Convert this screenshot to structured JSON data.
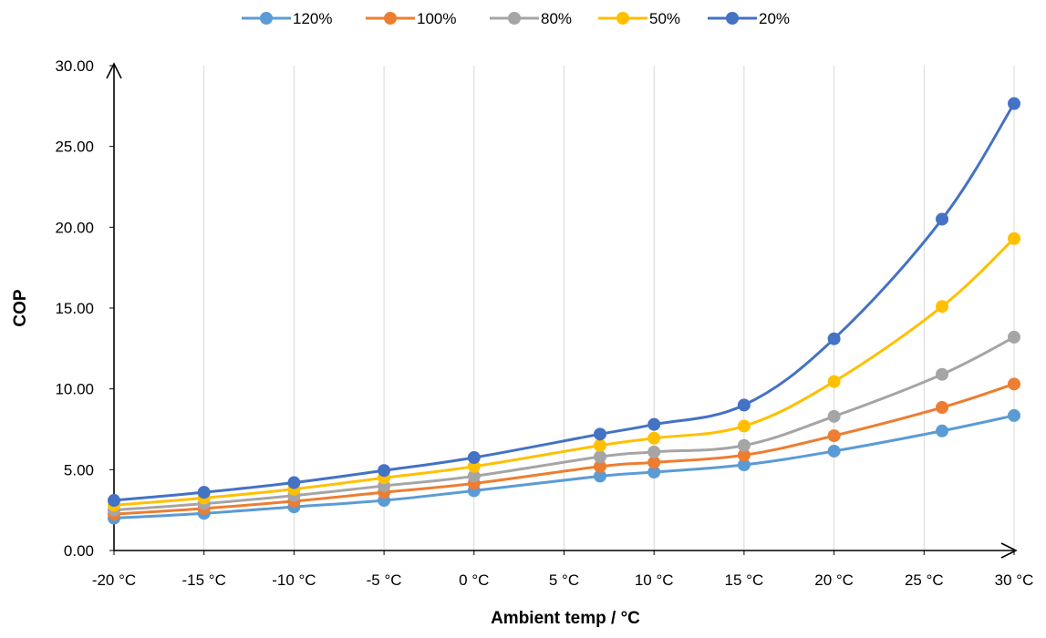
{
  "chart_data": {
    "type": "line",
    "title": "",
    "xlabel": "Ambient temp / °C",
    "ylabel": "COP",
    "x": [
      -20,
      -15,
      -10,
      -5,
      0,
      7,
      10,
      15,
      20,
      26,
      30
    ],
    "x_tick_values": [
      -20,
      -15,
      -10,
      -5,
      0,
      5,
      10,
      15,
      20,
      25,
      30
    ],
    "x_tick_labels": [
      "-20 °C",
      "-15 °C",
      "-10 °C",
      "-5 °C",
      "0 °C",
      "5 °C",
      "10 °C",
      "15 °C",
      "20 °C",
      "25 °C",
      "30 °C"
    ],
    "y_tick_values": [
      0,
      5,
      10,
      15,
      20,
      25,
      30
    ],
    "y_tick_labels": [
      "0.00",
      "5.00",
      "10.00",
      "15.00",
      "20.00",
      "25.00",
      "30.00"
    ],
    "xlim": [
      -20,
      30
    ],
    "ylim": [
      0,
      30
    ],
    "grid": "vertical",
    "legend_position": "top",
    "series": [
      {
        "name": "120%",
        "color": "#5B9BD5",
        "values": [
          2.0,
          2.3,
          2.7,
          3.1,
          3.7,
          4.6,
          4.85,
          5.3,
          6.15,
          7.4,
          8.35
        ]
      },
      {
        "name": "100%",
        "color": "#ED7D31",
        "values": [
          2.25,
          2.6,
          3.05,
          3.6,
          4.15,
          5.2,
          5.45,
          5.9,
          7.1,
          8.85,
          10.3
        ]
      },
      {
        "name": "80%",
        "color": "#A5A5A5",
        "values": [
          2.5,
          2.9,
          3.4,
          4.0,
          4.6,
          5.8,
          6.1,
          6.5,
          8.3,
          10.9,
          13.2
        ]
      },
      {
        "name": "50%",
        "color": "#FFC000",
        "values": [
          2.8,
          3.25,
          3.8,
          4.5,
          5.2,
          6.5,
          6.95,
          7.7,
          10.45,
          15.1,
          19.3
        ]
      },
      {
        "name": "20%",
        "color": "#4472C4",
        "values": [
          3.1,
          3.6,
          4.2,
          4.95,
          5.75,
          7.2,
          7.8,
          9.0,
          13.1,
          20.5,
          27.65
        ]
      }
    ]
  }
}
